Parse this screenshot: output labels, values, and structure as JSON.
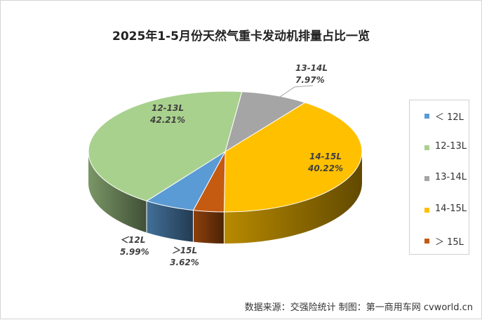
{
  "chart_data": {
    "type": "pie",
    "title": "2025年1-5月份天然气重卡发动机排量占比一览",
    "categories": [
      "＜12L",
      "12-13L",
      "13-14L",
      "14-15L",
      "＞15L"
    ],
    "values": [
      5.99,
      42.21,
      7.97,
      40.22,
      3.62
    ],
    "data_labels": [
      {
        "name": "＜12L",
        "value": "5.99%"
      },
      {
        "name": "12-13L",
        "value": "42.21%"
      },
      {
        "name": "13-14L",
        "value": "7.97%"
      },
      {
        "name": "14-15L",
        "value": "40.22%"
      },
      {
        "name": "＞15L",
        "value": "3.62%"
      }
    ],
    "legend_position": "right",
    "colors": [
      "#5b9bd5",
      "#a9d18e",
      "#a5a5a5",
      "#ffc000",
      "#c55a11"
    ]
  },
  "legend": {
    "items": [
      "＜ 12L",
      "12-13L",
      "13-14L",
      "14-15L",
      "＞ 15L"
    ]
  },
  "source": "数据来源：交强险统计 制图：第一商用车网 cvworld.cn"
}
